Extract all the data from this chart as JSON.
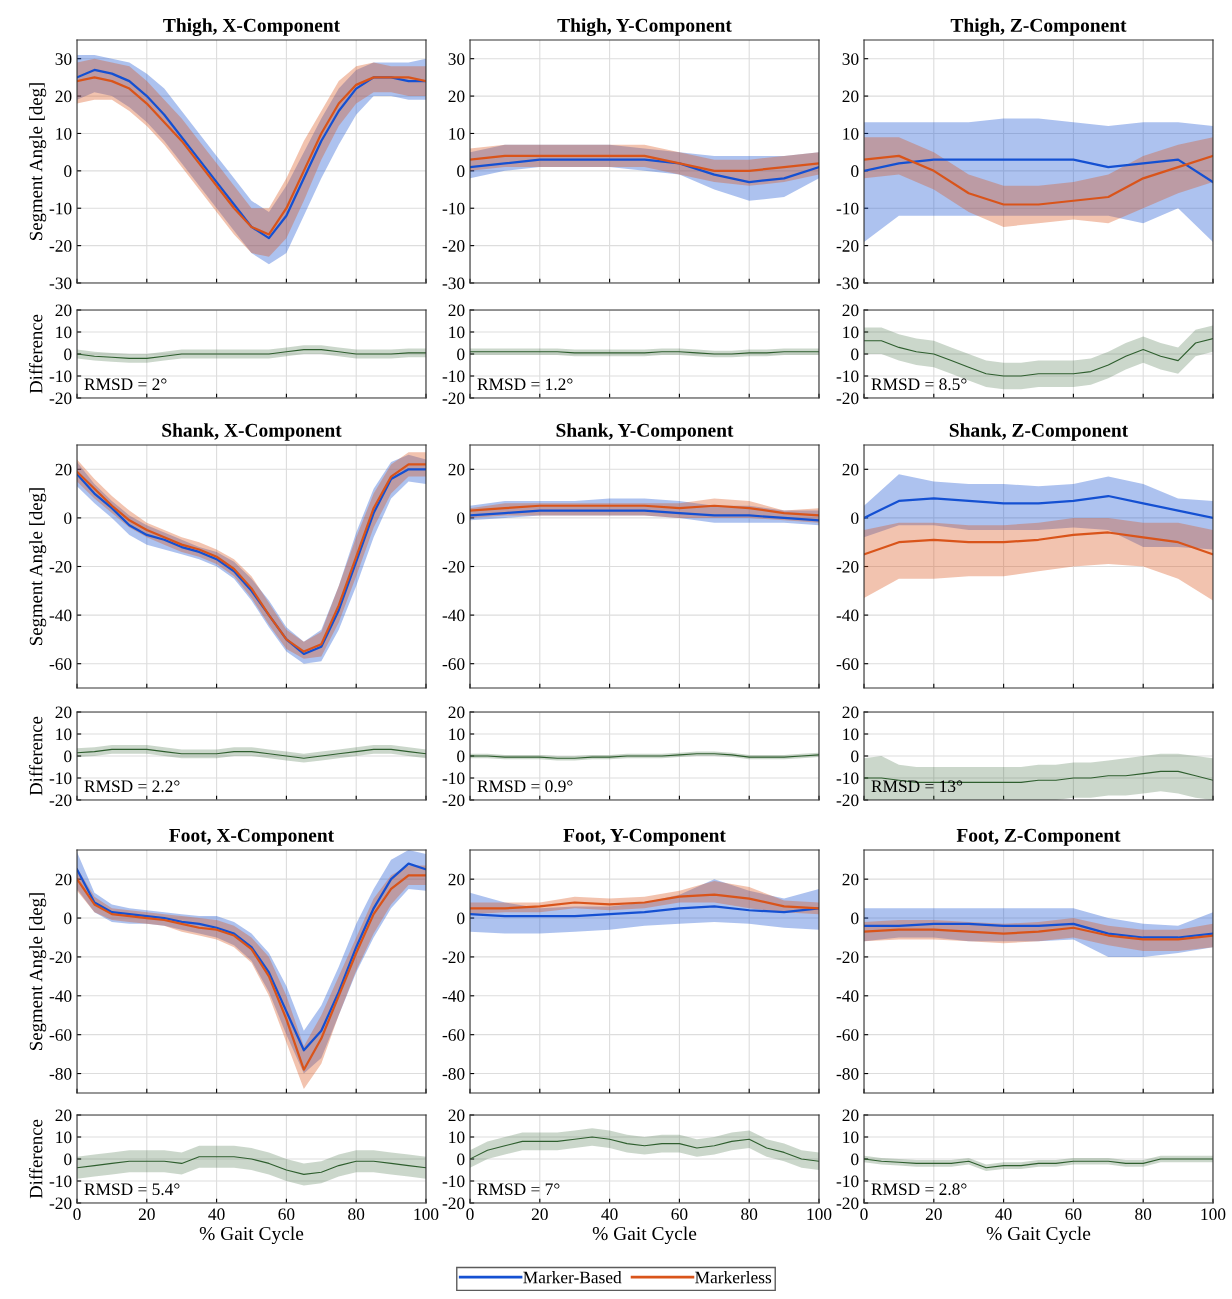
{
  "chart_data": [
    {
      "type": "line",
      "title": "Thigh, X-Component",
      "ylabel": "Segment Angle [deg]",
      "x": [
        0,
        5,
        10,
        15,
        20,
        25,
        30,
        35,
        40,
        45,
        50,
        55,
        60,
        65,
        70,
        75,
        80,
        85,
        90,
        95,
        100
      ],
      "xlim": [
        0,
        100
      ],
      "xticks": [
        0,
        20,
        40,
        60,
        80,
        100
      ],
      "ylim": [
        -30,
        35
      ],
      "yticks": [
        -30,
        -20,
        -10,
        0,
        10,
        20,
        30
      ],
      "grid": true,
      "tick_labels": "y",
      "legend": "bottom",
      "series": [
        {
          "name": "Marker-Based",
          "color": "#1450d2",
          "values": [
            25,
            27,
            26,
            24,
            20,
            15,
            9,
            3,
            -3,
            -9,
            -15,
            -18,
            -12,
            -2,
            8,
            16,
            22,
            25,
            25,
            24,
            24
          ],
          "lower": [
            19,
            21,
            20,
            17,
            13,
            8,
            2,
            -4,
            -10,
            -16,
            -22,
            -25,
            -22,
            -12,
            -2,
            7,
            15,
            20,
            20,
            19,
            19
          ],
          "upper": [
            31,
            31,
            30,
            29,
            26,
            22,
            16,
            10,
            4,
            -2,
            -8,
            -11,
            -4,
            5,
            14,
            22,
            27,
            29,
            29,
            29,
            30
          ]
        },
        {
          "name": "Markerless",
          "color": "#d9541a",
          "values": [
            24,
            25,
            24,
            22,
            18,
            13,
            8,
            2,
            -4,
            -10,
            -15,
            -17,
            -10,
            0,
            10,
            18,
            23,
            25,
            25,
            25,
            24
          ],
          "lower": [
            18,
            19,
            19,
            16,
            12,
            7,
            1,
            -5,
            -11,
            -17,
            -22,
            -23,
            -18,
            -8,
            3,
            12,
            18,
            21,
            21,
            20,
            20
          ],
          "upper": [
            29,
            30,
            29,
            28,
            24,
            19,
            14,
            8,
            2,
            -4,
            -10,
            -10,
            -2,
            8,
            16,
            24,
            28,
            29,
            28,
            28,
            28
          ]
        }
      ]
    },
    {
      "type": "line",
      "title": "Thigh, Y-Component",
      "x": [
        0,
        10,
        20,
        30,
        40,
        50,
        60,
        70,
        80,
        90,
        100
      ],
      "xlim": [
        0,
        100
      ],
      "xticks": [
        0,
        20,
        40,
        60,
        80,
        100
      ],
      "ylim": [
        -30,
        35
      ],
      "yticks": [
        -30,
        -20,
        -10,
        0,
        10,
        20,
        30
      ],
      "grid": true,
      "tick_labels": "y",
      "series": [
        {
          "color": "#1450d2",
          "values": [
            1,
            2,
            3,
            3,
            3,
            3,
            2,
            -1,
            -3,
            -2,
            1
          ],
          "lower": [
            -2,
            0,
            1,
            1,
            1,
            0,
            -1,
            -5,
            -8,
            -7,
            -2
          ],
          "upper": [
            5,
            7,
            7,
            7,
            7,
            6,
            5,
            4,
            4,
            4,
            5
          ]
        },
        {
          "color": "#d9541a",
          "values": [
            3,
            4,
            4,
            4,
            4,
            4,
            2,
            0,
            0,
            1,
            2
          ],
          "lower": [
            0,
            1,
            1,
            1,
            1,
            1,
            -1,
            -3,
            -4,
            -3,
            -1
          ],
          "upper": [
            6,
            7,
            7,
            7,
            7,
            7,
            5,
            3,
            3,
            4,
            5
          ]
        }
      ]
    },
    {
      "type": "line",
      "title": "Thigh, Z-Component",
      "x": [
        0,
        10,
        20,
        30,
        40,
        50,
        60,
        70,
        80,
        90,
        100
      ],
      "xlim": [
        0,
        100
      ],
      "xticks": [
        0,
        20,
        40,
        60,
        80,
        100
      ],
      "ylim": [
        -30,
        35
      ],
      "yticks": [
        -30,
        -20,
        -10,
        0,
        10,
        20,
        30
      ],
      "grid": true,
      "tick_labels": "y",
      "series": [
        {
          "color": "#1450d2",
          "values": [
            0,
            2,
            3,
            3,
            3,
            3,
            3,
            1,
            2,
            3,
            -3
          ],
          "lower": [
            -19,
            -12,
            -12,
            -12,
            -12,
            -12,
            -12,
            -12,
            -14,
            -10,
            -19
          ],
          "upper": [
            13,
            13,
            13,
            13,
            14,
            14,
            13,
            12,
            13,
            13,
            12
          ]
        },
        {
          "color": "#d9541a",
          "values": [
            3,
            4,
            0,
            -6,
            -9,
            -9,
            -8,
            -7,
            -2,
            1,
            4
          ],
          "lower": [
            -2,
            -1,
            -5,
            -11,
            -15,
            -14,
            -13,
            -14,
            -10,
            -6,
            -3
          ],
          "upper": [
            9,
            9,
            5,
            -1,
            -4,
            -4,
            -3,
            -1,
            4,
            7,
            9
          ]
        }
      ]
    },
    {
      "type": "line",
      "ylabel": "Difference",
      "x": [
        0,
        5,
        10,
        15,
        20,
        25,
        30,
        35,
        40,
        45,
        50,
        55,
        60,
        65,
        70,
        75,
        80,
        85,
        90,
        95,
        100
      ],
      "xlim": [
        0,
        100
      ],
      "xticks": [
        0,
        20,
        40,
        60,
        80,
        100
      ],
      "ylim": [
        -20,
        20
      ],
      "yticks": [
        -20,
        -10,
        0,
        10,
        20
      ],
      "grid": true,
      "tick_labels": "y",
      "annotations": [
        "RMSD = 2°"
      ],
      "series": [
        {
          "color": "#2e5e2e",
          "values": [
            0,
            -1,
            -1.5,
            -2,
            -2,
            -1,
            0,
            0,
            0,
            0,
            0,
            0,
            1,
            2,
            2,
            1,
            0,
            0,
            0,
            0.5,
            0.5
          ],
          "lower": [
            -2,
            -3,
            -3.5,
            -4,
            -4,
            -3,
            -2,
            -2,
            -2,
            -2,
            -2,
            -2,
            -1,
            0,
            0,
            -1,
            -2,
            -2,
            -2,
            -1.5,
            -1.5
          ],
          "upper": [
            2,
            1,
            0.5,
            0,
            0,
            1,
            2,
            2,
            2,
            2,
            2,
            2,
            3,
            4,
            4,
            3,
            2,
            2,
            2,
            2.5,
            2.5
          ]
        }
      ]
    },
    {
      "type": "line",
      "x": [
        0,
        5,
        10,
        15,
        20,
        25,
        30,
        35,
        40,
        45,
        50,
        55,
        60,
        65,
        70,
        75,
        80,
        85,
        90,
        95,
        100
      ],
      "xlim": [
        0,
        100
      ],
      "xticks": [
        0,
        20,
        40,
        60,
        80,
        100
      ],
      "ylim": [
        -20,
        20
      ],
      "yticks": [
        -20,
        -10,
        0,
        10,
        20
      ],
      "grid": true,
      "tick_labels": "y",
      "annotations": [
        "RMSD = 1.2°"
      ],
      "series": [
        {
          "color": "#2e5e2e",
          "values": [
            1,
            1,
            1,
            1,
            1,
            1,
            0.5,
            0.5,
            0.5,
            0.5,
            0.5,
            1,
            1,
            0.5,
            0,
            0,
            0.5,
            0.5,
            1,
            1,
            1
          ],
          "lower": [
            -0.5,
            -0.5,
            -0.5,
            -0.5,
            -0.5,
            -0.5,
            -1,
            -1,
            -1,
            -1,
            -1,
            -0.5,
            -0.5,
            -1,
            -1.5,
            -1.5,
            -1,
            -1,
            -0.5,
            -0.5,
            -0.5
          ],
          "upper": [
            2.5,
            2.5,
            2.5,
            2.5,
            2.5,
            2.5,
            2,
            2,
            2,
            2,
            2,
            2.5,
            2.5,
            2,
            1.5,
            1.5,
            2,
            2,
            2.5,
            2.5,
            2.5
          ]
        }
      ]
    },
    {
      "type": "line",
      "x": [
        0,
        5,
        10,
        15,
        20,
        25,
        30,
        35,
        40,
        45,
        50,
        55,
        60,
        65,
        70,
        75,
        80,
        85,
        90,
        95,
        100
      ],
      "xlim": [
        0,
        100
      ],
      "xticks": [
        0,
        20,
        40,
        60,
        80,
        100
      ],
      "ylim": [
        -20,
        20
      ],
      "yticks": [
        -20,
        -10,
        0,
        10,
        20
      ],
      "grid": true,
      "tick_labels": "y",
      "annotations": [
        "RMSD = 8.5°"
      ],
      "series": [
        {
          "color": "#2e5e2e",
          "values": [
            6,
            6,
            3,
            1,
            0,
            -3,
            -6,
            -9,
            -10,
            -10,
            -9,
            -9,
            -9,
            -8,
            -5,
            -1,
            2,
            -1,
            -3,
            5,
            7
          ],
          "lower": [
            0,
            0,
            -3,
            -5,
            -6,
            -9,
            -12,
            -15,
            -16,
            -16,
            -15,
            -15,
            -15,
            -14,
            -11,
            -7,
            -4,
            -7,
            -9,
            -1,
            1
          ],
          "upper": [
            12,
            12,
            9,
            7,
            6,
            3,
            0,
            -3,
            -4,
            -4,
            -3,
            -3,
            -3,
            -2,
            1,
            5,
            8,
            5,
            3,
            11,
            13
          ]
        }
      ]
    },
    {
      "type": "line",
      "title": "Shank, X-Component",
      "ylabel": "Segment Angle [deg]",
      "x": [
        0,
        5,
        10,
        15,
        20,
        25,
        30,
        35,
        40,
        45,
        50,
        55,
        60,
        65,
        70,
        75,
        80,
        85,
        90,
        95,
        100
      ],
      "xlim": [
        0,
        100
      ],
      "xticks": [
        0,
        20,
        40,
        60,
        80,
        100
      ],
      "ylim": [
        -70,
        30
      ],
      "yticks": [
        -60,
        -40,
        -20,
        0,
        20
      ],
      "grid": true,
      "tick_labels": "y",
      "series": [
        {
          "color": "#1450d2",
          "values": [
            18,
            10,
            4,
            -3,
            -7,
            -9,
            -12,
            -14,
            -17,
            -22,
            -30,
            -40,
            -50,
            -56,
            -53,
            -38,
            -18,
            2,
            16,
            20,
            20
          ],
          "lower": [
            13,
            6,
            0,
            -7,
            -11,
            -13,
            -15,
            -17,
            -20,
            -25,
            -34,
            -45,
            -55,
            -60,
            -59,
            -46,
            -28,
            -8,
            8,
            15,
            14
          ],
          "upper": [
            23,
            14,
            7,
            1,
            -3,
            -6,
            -9,
            -12,
            -14,
            -18,
            -25,
            -34,
            -45,
            -51,
            -46,
            -28,
            -6,
            12,
            23,
            26,
            24
          ]
        },
        {
          "color": "#d9541a",
          "values": [
            19,
            12,
            5,
            -1,
            -5,
            -8,
            -11,
            -13,
            -16,
            -21,
            -29,
            -40,
            -50,
            -55,
            -52,
            -36,
            -16,
            4,
            17,
            22,
            22
          ],
          "lower": [
            15,
            8,
            2,
            -4,
            -8,
            -11,
            -14,
            -16,
            -19,
            -24,
            -33,
            -44,
            -54,
            -58,
            -57,
            -43,
            -24,
            -4,
            10,
            17,
            17
          ],
          "upper": [
            24,
            16,
            9,
            3,
            -2,
            -5,
            -8,
            -10,
            -13,
            -17,
            -24,
            -35,
            -46,
            -51,
            -47,
            -28,
            -8,
            10,
            22,
            27,
            27
          ]
        }
      ]
    },
    {
      "type": "line",
      "title": "Shank, Y-Component",
      "x": [
        0,
        10,
        20,
        30,
        40,
        50,
        60,
        70,
        80,
        90,
        100
      ],
      "xlim": [
        0,
        100
      ],
      "xticks": [
        0,
        20,
        40,
        60,
        80,
        100
      ],
      "ylim": [
        -70,
        30
      ],
      "yticks": [
        -60,
        -40,
        -20,
        0,
        20
      ],
      "grid": true,
      "tick_labels": "y",
      "series": [
        {
          "color": "#1450d2",
          "values": [
            1,
            2,
            3,
            3,
            3,
            3,
            2,
            1,
            1,
            0,
            -1
          ],
          "lower": [
            -1,
            0,
            1,
            1,
            1,
            1,
            0,
            -2,
            -2,
            -2,
            -3
          ],
          "upper": [
            5,
            7,
            7,
            7,
            8,
            8,
            7,
            5,
            5,
            3,
            3
          ]
        },
        {
          "color": "#d9541a",
          "values": [
            3,
            4,
            5,
            5,
            5,
            5,
            4,
            5,
            4,
            2,
            1
          ],
          "lower": [
            0,
            1,
            1,
            1,
            1,
            1,
            0,
            0,
            0,
            -1,
            -2
          ],
          "upper": [
            4,
            6,
            6,
            6,
            6,
            6,
            6,
            8,
            7,
            3,
            4
          ]
        }
      ]
    },
    {
      "type": "line",
      "title": "Shank, Z-Component",
      "x": [
        0,
        10,
        20,
        30,
        40,
        50,
        60,
        70,
        80,
        90,
        100
      ],
      "xlim": [
        0,
        100
      ],
      "xticks": [
        0,
        20,
        40,
        60,
        80,
        100
      ],
      "ylim": [
        -70,
        30
      ],
      "yticks": [
        -60,
        -40,
        -20,
        0,
        20
      ],
      "grid": true,
      "tick_labels": "y",
      "series": [
        {
          "color": "#1450d2",
          "values": [
            0,
            7,
            8,
            7,
            6,
            6,
            7,
            9,
            6,
            3,
            0
          ],
          "lower": [
            -8,
            -3,
            -3,
            -5,
            -5,
            -5,
            -4,
            -5,
            -12,
            -12,
            -13
          ],
          "upper": [
            5,
            18,
            15,
            14,
            14,
            13,
            14,
            17,
            14,
            8,
            7
          ]
        },
        {
          "color": "#d9541a",
          "values": [
            -15,
            -10,
            -9,
            -10,
            -10,
            -9,
            -7,
            -6,
            -8,
            -10,
            -15
          ],
          "lower": [
            -33,
            -25,
            -25,
            -24,
            -24,
            -22,
            -20,
            -19,
            -20,
            -25,
            -34
          ],
          "upper": [
            -5,
            -2,
            -2,
            -3,
            -3,
            -2,
            0,
            0,
            -2,
            -2,
            -5
          ]
        }
      ]
    },
    {
      "type": "line",
      "ylabel": "Difference",
      "x": [
        0,
        5,
        10,
        15,
        20,
        25,
        30,
        35,
        40,
        45,
        50,
        55,
        60,
        65,
        70,
        75,
        80,
        85,
        90,
        95,
        100
      ],
      "xlim": [
        0,
        100
      ],
      "xticks": [
        0,
        20,
        40,
        60,
        80,
        100
      ],
      "ylim": [
        -20,
        20
      ],
      "yticks": [
        -20,
        -10,
        0,
        10,
        20
      ],
      "grid": true,
      "tick_labels": "y",
      "annotations": [
        "RMSD = 2.2°"
      ],
      "series": [
        {
          "color": "#2e5e2e",
          "values": [
            1.5,
            2,
            3,
            3,
            3,
            2,
            1,
            1,
            1,
            2,
            2,
            1,
            0,
            -1,
            0,
            1,
            2,
            3,
            3,
            2,
            1
          ],
          "lower": [
            -0.5,
            0,
            1,
            1,
            1,
            0,
            -1,
            -1,
            -1,
            0,
            0,
            -1,
            -2,
            -3,
            -2,
            -1,
            0,
            1,
            1,
            0,
            -1
          ],
          "upper": [
            3.5,
            4,
            5,
            5,
            5,
            4,
            3,
            3,
            3,
            4,
            4,
            3,
            2,
            1,
            2,
            3,
            4,
            5,
            5,
            4,
            3
          ]
        }
      ]
    },
    {
      "type": "line",
      "x": [
        0,
        5,
        10,
        15,
        20,
        25,
        30,
        35,
        40,
        45,
        50,
        55,
        60,
        65,
        70,
        75,
        80,
        85,
        90,
        95,
        100
      ],
      "xlim": [
        0,
        100
      ],
      "xticks": [
        0,
        20,
        40,
        60,
        80,
        100
      ],
      "ylim": [
        -20,
        20
      ],
      "yticks": [
        -20,
        -10,
        0,
        10,
        20
      ],
      "grid": true,
      "tick_labels": "y",
      "annotations": [
        "RMSD = 0.9°"
      ],
      "series": [
        {
          "color": "#2e5e2e",
          "values": [
            0,
            0,
            -0.5,
            -0.5,
            -0.5,
            -1,
            -1,
            -0.5,
            -0.5,
            0,
            0,
            0,
            0.5,
            1,
            1,
            0.5,
            -0.5,
            -0.5,
            -0.5,
            0,
            0.5
          ],
          "lower": [
            -1,
            -1,
            -1.5,
            -1.5,
            -1.5,
            -2,
            -2,
            -1.5,
            -1.5,
            -1,
            -1,
            -1,
            -0.5,
            0,
            0,
            -0.5,
            -1.5,
            -1.5,
            -1.5,
            -1,
            -0.5
          ],
          "upper": [
            1,
            1,
            0.5,
            0.5,
            0.5,
            0,
            0,
            0.5,
            0.5,
            1,
            1,
            1,
            1.5,
            2,
            2,
            1.5,
            0.5,
            0.5,
            0.5,
            1,
            1.5
          ]
        }
      ]
    },
    {
      "type": "line",
      "x": [
        0,
        5,
        10,
        15,
        20,
        25,
        30,
        35,
        40,
        45,
        50,
        55,
        60,
        65,
        70,
        75,
        80,
        85,
        90,
        95,
        100
      ],
      "xlim": [
        0,
        100
      ],
      "xticks": [
        0,
        20,
        40,
        60,
        80,
        100
      ],
      "ylim": [
        -20,
        20
      ],
      "yticks": [
        -20,
        -10,
        0,
        10,
        20
      ],
      "grid": true,
      "tick_labels": "y",
      "annotations": [
        "RMSD = 13°"
      ],
      "series": [
        {
          "color": "#2e5e2e",
          "values": [
            -10,
            -10,
            -11,
            -12,
            -12,
            -12,
            -12,
            -12,
            -12,
            -12,
            -11,
            -11,
            -10,
            -10,
            -9,
            -9,
            -8,
            -7,
            -7,
            -9,
            -11
          ],
          "lower": [
            -20,
            -20,
            -20,
            -20,
            -20,
            -20,
            -20,
            -20,
            -20,
            -20,
            -20,
            -20,
            -19,
            -19,
            -18,
            -18,
            -17,
            -16,
            -17,
            -19,
            -20
          ],
          "upper": [
            -1,
            0,
            -4,
            -5,
            -5,
            -5,
            -5,
            -5,
            -5,
            -5,
            -4,
            -4,
            -3,
            -3,
            -2,
            -1,
            0,
            1,
            1,
            0,
            -1
          ]
        }
      ]
    },
    {
      "type": "line",
      "title": "Foot, X-Component",
      "ylabel": "Segment Angle [deg]",
      "x": [
        0,
        5,
        10,
        15,
        20,
        25,
        30,
        35,
        40,
        45,
        50,
        55,
        60,
        65,
        70,
        75,
        80,
        85,
        90,
        95,
        100
      ],
      "xlim": [
        0,
        100
      ],
      "xticks": [
        0,
        20,
        40,
        60,
        80,
        100
      ],
      "ylim": [
        -90,
        35
      ],
      "yticks": [
        -80,
        -60,
        -40,
        -20,
        0,
        20
      ],
      "grid": true,
      "tick_labels": "y",
      "series": [
        {
          "color": "#1450d2",
          "values": [
            25,
            8,
            3,
            2,
            1,
            0,
            -2,
            -3,
            -5,
            -8,
            -15,
            -28,
            -48,
            -68,
            -58,
            -38,
            -15,
            5,
            20,
            28,
            25
          ],
          "lower": [
            15,
            3,
            -2,
            -3,
            -3,
            -4,
            -6,
            -8,
            -10,
            -14,
            -22,
            -38,
            -60,
            -80,
            -72,
            -50,
            -28,
            -10,
            5,
            15,
            14
          ],
          "upper": [
            34,
            13,
            7,
            5,
            4,
            3,
            2,
            1,
            1,
            -2,
            -8,
            -18,
            -35,
            -58,
            -45,
            -25,
            -3,
            15,
            30,
            35,
            33
          ]
        },
        {
          "color": "#d9541a",
          "values": [
            20,
            7,
            2,
            1,
            0,
            -1,
            -3,
            -5,
            -6,
            -9,
            -16,
            -30,
            -52,
            -78,
            -62,
            -40,
            -18,
            2,
            15,
            22,
            22
          ],
          "lower": [
            14,
            3,
            -1,
            -2,
            -3,
            -4,
            -7,
            -9,
            -11,
            -15,
            -23,
            -40,
            -64,
            -88,
            -75,
            -50,
            -27,
            -8,
            7,
            17,
            17
          ],
          "upper": [
            26,
            11,
            5,
            4,
            3,
            2,
            1,
            0,
            -1,
            -4,
            -10,
            -20,
            -40,
            -66,
            -50,
            -30,
            -10,
            10,
            22,
            27,
            27
          ]
        }
      ]
    },
    {
      "type": "line",
      "title": "Foot, Y-Component",
      "x": [
        0,
        10,
        20,
        30,
        40,
        50,
        60,
        70,
        80,
        90,
        100
      ],
      "xlim": [
        0,
        100
      ],
      "xticks": [
        0,
        20,
        40,
        60,
        80,
        100
      ],
      "ylim": [
        -90,
        35
      ],
      "yticks": [
        -80,
        -60,
        -40,
        -20,
        0,
        20
      ],
      "grid": true,
      "tick_labels": "y",
      "series": [
        {
          "color": "#1450d2",
          "values": [
            2,
            1,
            1,
            1,
            2,
            3,
            5,
            6,
            4,
            3,
            5
          ],
          "lower": [
            -7,
            -8,
            -8,
            -7,
            -6,
            -4,
            -3,
            -2,
            -3,
            -5,
            -6
          ],
          "upper": [
            13,
            8,
            5,
            6,
            6,
            8,
            12,
            20,
            14,
            10,
            15
          ]
        },
        {
          "color": "#d9541a",
          "values": [
            5,
            5,
            6,
            8,
            7,
            8,
            11,
            12,
            10,
            6,
            5
          ],
          "lower": [
            2,
            3,
            3,
            5,
            4,
            5,
            8,
            8,
            5,
            3,
            2
          ],
          "upper": [
            8,
            8,
            8,
            11,
            10,
            11,
            14,
            19,
            16,
            9,
            8
          ]
        }
      ]
    },
    {
      "type": "line",
      "title": "Foot, Z-Component",
      "x": [
        0,
        10,
        20,
        30,
        40,
        50,
        60,
        70,
        80,
        90,
        100
      ],
      "xlim": [
        0,
        100
      ],
      "xticks": [
        0,
        20,
        40,
        60,
        80,
        100
      ],
      "ylim": [
        -90,
        35
      ],
      "yticks": [
        -80,
        -60,
        -40,
        -20,
        0,
        20
      ],
      "grid": true,
      "tick_labels": "y",
      "series": [
        {
          "color": "#1450d2",
          "values": [
            -4,
            -4,
            -3,
            -3,
            -4,
            -4,
            -3,
            -8,
            -10,
            -10,
            -8
          ],
          "lower": [
            -12,
            -10,
            -10,
            -12,
            -12,
            -12,
            -11,
            -20,
            -20,
            -18,
            -15
          ],
          "upper": [
            5,
            5,
            5,
            5,
            5,
            5,
            5,
            0,
            -3,
            -4,
            3
          ]
        },
        {
          "color": "#d9541a",
          "values": [
            -7,
            -6,
            -6,
            -7,
            -8,
            -7,
            -5,
            -9,
            -11,
            -11,
            -9
          ],
          "lower": [
            -12,
            -11,
            -11,
            -12,
            -13,
            -12,
            -10,
            -14,
            -17,
            -17,
            -15
          ],
          "upper": [
            -2,
            -1,
            -1,
            -2,
            -3,
            -2,
            0,
            -4,
            -6,
            -6,
            -3
          ]
        }
      ]
    },
    {
      "type": "line",
      "ylabel": "Difference",
      "xlabel": "% Gait Cycle",
      "x": [
        0,
        5,
        10,
        15,
        20,
        25,
        30,
        35,
        40,
        45,
        50,
        55,
        60,
        65,
        70,
        75,
        80,
        85,
        90,
        95,
        100
      ],
      "xlim": [
        0,
        100
      ],
      "xticks": [
        0,
        20,
        40,
        60,
        80,
        100
      ],
      "ylim": [
        -20,
        20
      ],
      "yticks": [
        -20,
        -10,
        0,
        10,
        20
      ],
      "grid": true,
      "annotations": [
        "RMSD = 5.4°"
      ],
      "series": [
        {
          "color": "#2e5e2e",
          "values": [
            -4,
            -3,
            -2,
            -1,
            -1,
            -1,
            -2,
            1,
            1,
            1,
            0,
            -2,
            -5,
            -7,
            -6,
            -3,
            -1,
            -1,
            -2,
            -3,
            -4
          ],
          "lower": [
            -9,
            -8,
            -7,
            -6,
            -6,
            -6,
            -7,
            -4,
            -4,
            -4,
            -5,
            -7,
            -10,
            -12,
            -11,
            -8,
            -6,
            -6,
            -7,
            -8,
            -9
          ],
          "upper": [
            1,
            2,
            3,
            4,
            4,
            4,
            3,
            6,
            6,
            6,
            5,
            3,
            0,
            -2,
            -1,
            2,
            4,
            4,
            3,
            2,
            1
          ]
        }
      ]
    },
    {
      "type": "line",
      "xlabel": "% Gait Cycle",
      "x": [
        0,
        5,
        10,
        15,
        20,
        25,
        30,
        35,
        40,
        45,
        50,
        55,
        60,
        65,
        70,
        75,
        80,
        85,
        90,
        95,
        100
      ],
      "xlim": [
        0,
        100
      ],
      "xticks": [
        0,
        20,
        40,
        60,
        80,
        100
      ],
      "ylim": [
        -20,
        20
      ],
      "yticks": [
        -20,
        -10,
        0,
        10,
        20
      ],
      "grid": true,
      "annotations": [
        "RMSD = 7°"
      ],
      "series": [
        {
          "color": "#2e5e2e",
          "values": [
            0,
            4,
            6,
            8,
            8,
            8,
            9,
            10,
            9,
            7,
            6,
            7,
            7,
            5,
            6,
            8,
            9,
            5,
            3,
            0,
            -1
          ],
          "lower": [
            -4,
            0,
            2,
            4,
            4,
            4,
            5,
            6,
            5,
            3,
            2,
            3,
            3,
            1,
            2,
            4,
            5,
            1,
            -1,
            -4,
            -5
          ],
          "upper": [
            4,
            8,
            10,
            12,
            12,
            12,
            13,
            14,
            13,
            11,
            10,
            11,
            11,
            9,
            10,
            12,
            13,
            9,
            7,
            4,
            3
          ]
        }
      ]
    },
    {
      "type": "line",
      "xlabel": "% Gait Cycle",
      "x": [
        0,
        5,
        10,
        15,
        20,
        25,
        30,
        35,
        40,
        45,
        50,
        55,
        60,
        65,
        70,
        75,
        80,
        85,
        90,
        95,
        100
      ],
      "xlim": [
        0,
        100
      ],
      "xticks": [
        0,
        20,
        40,
        60,
        80,
        100
      ],
      "ylim": [
        -20,
        20
      ],
      "yticks": [
        -20,
        -10,
        0,
        10,
        20
      ],
      "grid": true,
      "annotations": [
        "RMSD = 2.8°"
      ],
      "series": [
        {
          "color": "#2e5e2e",
          "values": [
            0,
            -1,
            -1.5,
            -2,
            -2,
            -2,
            -1,
            -4,
            -3,
            -3,
            -2,
            -2,
            -1,
            -1,
            -1,
            -2,
            -2,
            0,
            0,
            0,
            0
          ],
          "lower": [
            -1.5,
            -2.5,
            -3,
            -3.5,
            -3.5,
            -3.5,
            -2.5,
            -5.5,
            -4.5,
            -4.5,
            -3.5,
            -3.5,
            -2.5,
            -2.5,
            -2.5,
            -3.5,
            -3.5,
            -1.5,
            -1.5,
            -1.5,
            -1.5
          ],
          "upper": [
            1.5,
            0.5,
            0,
            -0.5,
            -0.5,
            -0.5,
            0.5,
            -2.5,
            -1.5,
            -1.5,
            -0.5,
            -0.5,
            0.5,
            0.5,
            0.5,
            -0.5,
            -0.5,
            1.5,
            1.5,
            1.5,
            1.5
          ]
        }
      ]
    }
  ]
}
